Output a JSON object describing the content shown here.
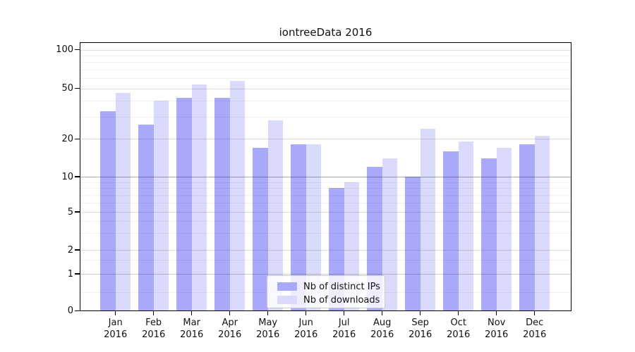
{
  "title": "iontreeData 2016",
  "chart_data": {
    "type": "bar",
    "title": "iontreeData 2016",
    "categories": [
      "Jan 2016",
      "Feb 2016",
      "Mar 2016",
      "Apr 2016",
      "May 2016",
      "Jun 2016",
      "Jul 2016",
      "Aug 2016",
      "Sep 2016",
      "Oct 2016",
      "Nov 2016",
      "Dec 2016"
    ],
    "series": [
      {
        "name": "Nb of distinct IPs",
        "color": "#a9a9fb",
        "values": [
          33,
          26,
          42,
          42,
          17,
          18,
          8,
          12,
          10,
          16,
          14,
          18
        ]
      },
      {
        "name": "Nb of downloads",
        "color": "#dadafc",
        "values": [
          46,
          40,
          54,
          57,
          28,
          18,
          9,
          14,
          24,
          19,
          17,
          21
        ]
      }
    ],
    "xlabel": "",
    "ylabel": "",
    "yscale": "log-like (symlog, linear below 1)",
    "yticks": [
      100,
      50,
      20,
      10,
      5,
      2,
      1,
      0
    ],
    "ylim": [
      0,
      115
    ],
    "grid": true,
    "legend_position": "lower center inside plot"
  },
  "axis": {
    "ytick_labels": [
      "100",
      "50",
      "20",
      "10",
      "5",
      "2",
      "1",
      "0"
    ],
    "month_labels": [
      "Jan",
      "Feb",
      "Mar",
      "Apr",
      "May",
      "Jun",
      "Jul",
      "Aug",
      "Sep",
      "Oct",
      "Nov",
      "Dec"
    ],
    "year_label": "2016"
  },
  "colors": {
    "series_dark": "#a9a9fb",
    "series_light": "#dadafc",
    "grid_minor": "rgba(0,0,0,0.055)",
    "grid_major": "rgba(0,0,0,0.13)",
    "grid_line_at_10": "rgba(0,0,0,0.32)",
    "grid_line_at_1": "rgba(0,0,0,0.20)",
    "spine": "#000000",
    "legend_border": "#cccccc"
  }
}
